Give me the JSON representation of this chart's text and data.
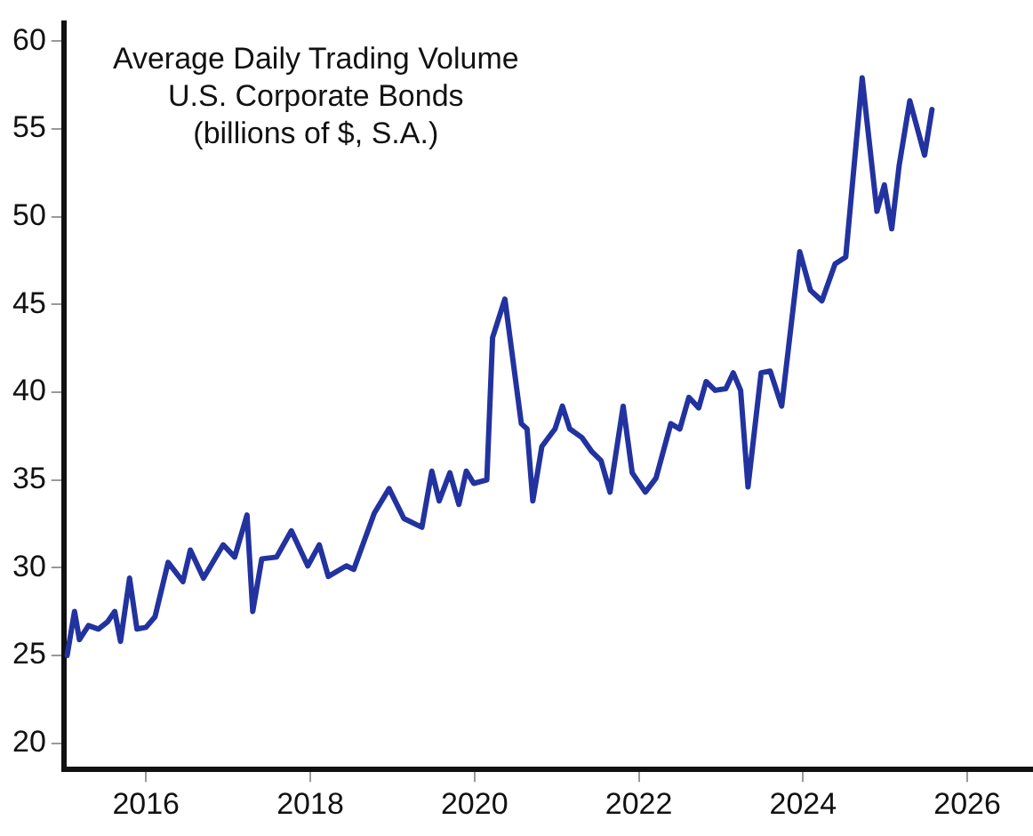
{
  "chart_data": {
    "type": "line",
    "title": "Average Daily Trading Volume\nU.S. Corporate Bonds\n(billions of $, S.A.)",
    "x": [
      2015.04,
      2015.13,
      2015.19,
      2015.3,
      2015.42,
      2015.53,
      2015.62,
      2015.69,
      2015.8,
      2015.89,
      2016.0,
      2016.11,
      2016.27,
      2016.45,
      2016.54,
      2016.7,
      2016.94,
      2017.08,
      2017.23,
      2017.3,
      2017.41,
      2017.59,
      2017.77,
      2017.97,
      2018.11,
      2018.22,
      2018.44,
      2018.53,
      2018.78,
      2018.96,
      2019.14,
      2019.36,
      2019.48,
      2019.57,
      2019.7,
      2019.81,
      2019.9,
      2019.99,
      2020.15,
      2020.22,
      2020.37,
      2020.57,
      2020.64,
      2020.71,
      2020.82,
      2020.98,
      2021.07,
      2021.16,
      2021.31,
      2021.43,
      2021.54,
      2021.65,
      2021.81,
      2021.92,
      2022.08,
      2022.21,
      2022.39,
      2022.5,
      2022.61,
      2022.73,
      2022.82,
      2022.93,
      2023.06,
      2023.15,
      2023.24,
      2023.33,
      2023.49,
      2023.6,
      2023.74,
      2023.96,
      2024.09,
      2024.23,
      2024.39,
      2024.52,
      2024.72,
      2024.9,
      2024.99,
      2025.08,
      2025.17,
      2025.3,
      2025.48,
      2025.57
    ],
    "series": [
      {
        "color": "#2233a0",
        "values": [
          25.0,
          27.5,
          25.9,
          26.7,
          26.5,
          26.9,
          27.5,
          25.8,
          29.4,
          26.5,
          26.6,
          27.2,
          30.3,
          29.2,
          31.0,
          29.4,
          31.3,
          30.6,
          33.0,
          27.5,
          30.5,
          30.6,
          32.1,
          30.1,
          31.3,
          29.5,
          30.1,
          29.9,
          33.1,
          34.5,
          32.8,
          32.3,
          35.5,
          33.8,
          35.4,
          33.6,
          35.5,
          34.8,
          35.0,
          43.1,
          45.3,
          38.2,
          37.9,
          33.8,
          36.9,
          37.9,
          39.2,
          37.9,
          37.4,
          36.6,
          36.1,
          34.3,
          39.2,
          35.4,
          34.3,
          35.1,
          38.2,
          37.9,
          39.7,
          39.1,
          40.6,
          40.1,
          40.2,
          41.1,
          40.1,
          34.6,
          41.1,
          41.2,
          39.2,
          48.0,
          45.8,
          45.2,
          47.3,
          47.7,
          57.9,
          50.3,
          51.8,
          49.3,
          52.9,
          56.6,
          53.5,
          56.1
        ]
      }
    ],
    "xlim": [
      2015,
      2026.8
    ],
    "xticks": [
      2016,
      2018,
      2020,
      2022,
      2024,
      2026
    ],
    "ylim": [
      18.5,
      61
    ],
    "yticks": [
      20,
      25,
      30,
      35,
      40,
      45,
      50,
      55,
      60
    ],
    "grid": false,
    "legend": false,
    "marker": "none",
    "line_style": "solid"
  }
}
